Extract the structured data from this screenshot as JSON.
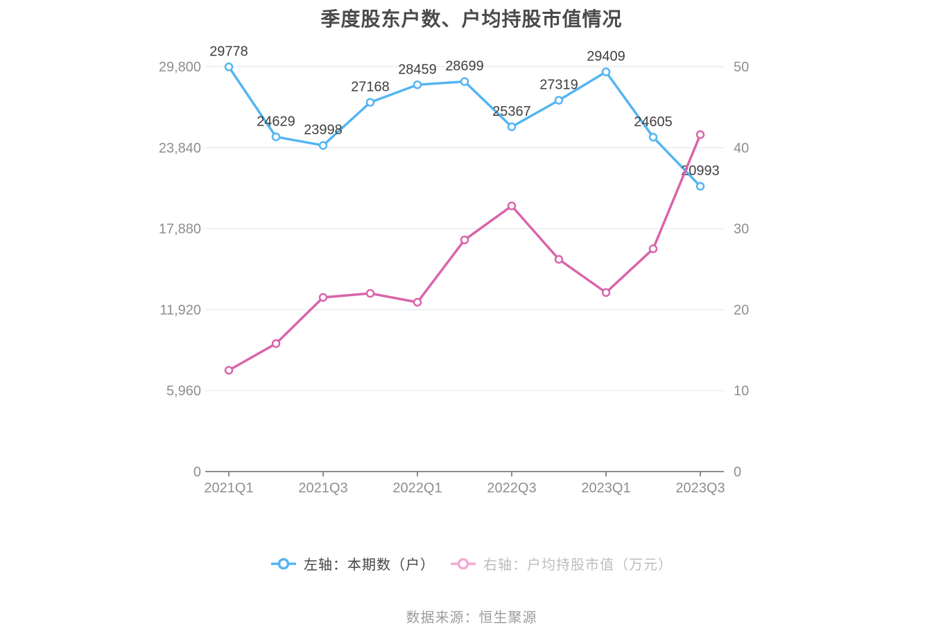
{
  "title": "季度股东户数、户均持股市值情况",
  "source": "数据来源：恒生聚源",
  "legend": {
    "items": [
      {
        "label": "左轴：本期数（户）",
        "marker_color": "#54b5f2",
        "text_color": "#454545"
      },
      {
        "label": "右轴：户均持股市值（万元）",
        "marker_color": "#f0abd5",
        "text_color": "#bdbdbd"
      }
    ]
  },
  "colors": {
    "title_text": "#4a4a4a",
    "axis_line": "#8c8c8c",
    "tick_text": "#8e8e8e",
    "grid_line": "#e8ebf3",
    "data_label": "#3f3f3f",
    "source_text": "#9c9c9c",
    "blue_series": "#54b5f2",
    "pink_series": "#d964aa"
  },
  "chart_data": {
    "type": "line",
    "title": "季度股东户数、户均持股市值情况",
    "categories": [
      "2021Q1",
      "2021Q2",
      "2021Q3",
      "2021Q4",
      "2022Q1",
      "2022Q2",
      "2022Q3",
      "2022Q4",
      "2023Q1",
      "2023Q2",
      "2023Q3"
    ],
    "x_tick_labels": [
      "2021Q1",
      "2021Q3",
      "2022Q1",
      "2022Q3",
      "2023Q1",
      "2023Q3"
    ],
    "series": [
      {
        "name": "左轴：本期数（户）",
        "axis": "left",
        "color": "#54b5f2",
        "show_labels": true,
        "values": [
          29778,
          24629,
          23998,
          27168,
          28459,
          28699,
          25367,
          27319,
          29409,
          24605,
          20993
        ]
      },
      {
        "name": "右轴：户均持股市值（万元）",
        "axis": "right",
        "color": "#d964aa",
        "show_labels": false,
        "values": [
          12.5,
          15.8,
          21.5,
          22.0,
          20.9,
          28.6,
          32.8,
          26.2,
          22.1,
          27.5,
          41.6
        ]
      }
    ],
    "left_axis": {
      "tick_labels": [
        "0",
        "5,960",
        "11,920",
        "17,880",
        "23,840",
        "29,800"
      ],
      "min": 0,
      "max": 29800
    },
    "right_axis": {
      "tick_labels": [
        "0",
        "10",
        "20",
        "30",
        "40",
        "50"
      ],
      "min": 0,
      "max": 50
    },
    "grid": true,
    "legend_position": "bottom"
  }
}
